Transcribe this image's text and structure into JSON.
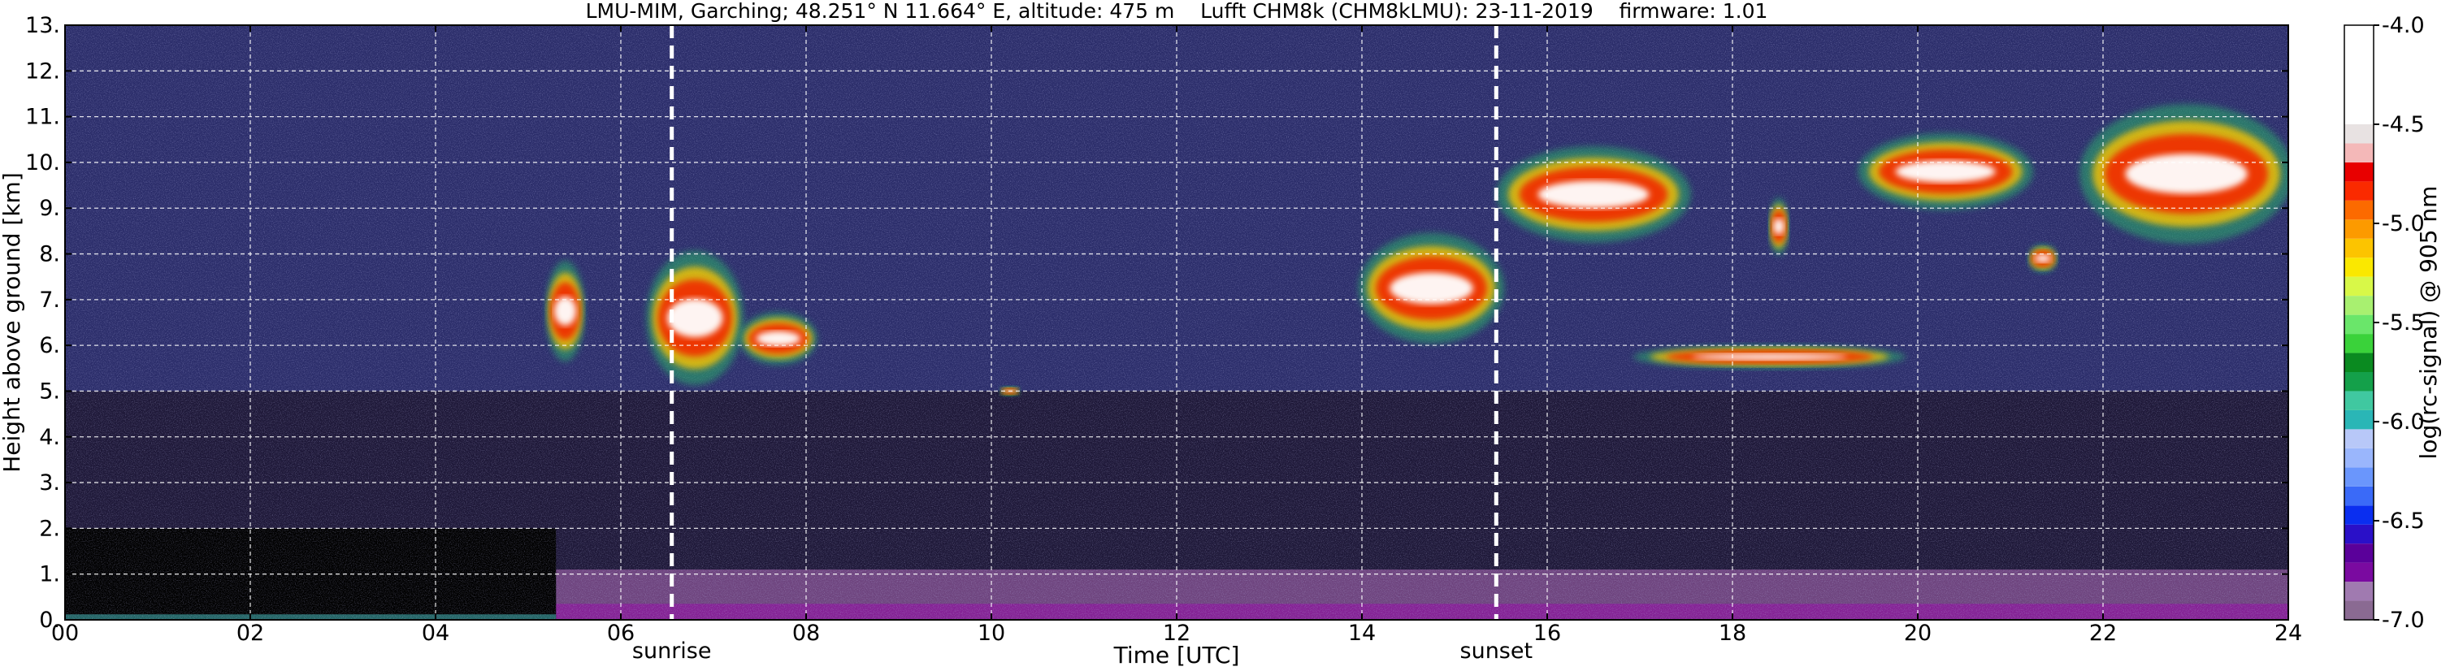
{
  "chart_data": {
    "type": "heatmap",
    "title": "LMU-MIM, Garching; 48.251° N 11.664° E, altitude: 475 m    Lufft CHM8k (CHM8kLMU): 23-11-2019    firmware: 1.01",
    "xlabel": "Time [UTC]",
    "ylabel": "Height above ground [km]",
    "xlim": [
      0,
      24
    ],
    "ylim": [
      0,
      13
    ],
    "x_ticks": [
      "00",
      "02",
      "04",
      "06",
      "08",
      "10",
      "12",
      "14",
      "16",
      "18",
      "20",
      "22",
      "24"
    ],
    "y_ticks": [
      "0.",
      "1.",
      "2.",
      "3.",
      "4.",
      "5.",
      "6.",
      "7.",
      "8.",
      "9.",
      "10.",
      "11.",
      "12.",
      "13."
    ],
    "grid": true,
    "colorbar": {
      "label": "log(rc-signal) @ 905 nm",
      "range": [
        -7.0,
        -4.0
      ],
      "ticks": [
        "-4.0",
        "-4.5",
        "-5.0",
        "-5.5",
        "-6.0",
        "-6.5",
        "-7.0"
      ],
      "colors": [
        "#8a6a92",
        "#a07ab0",
        "#7a0aa0",
        "#5a009a",
        "#2a10c8",
        "#0a2ef0",
        "#3a6af8",
        "#6a96fc",
        "#9ab6fc",
        "#b8c8f8",
        "#2ab6b6",
        "#40c8a0",
        "#14a04a",
        "#0a8a20",
        "#3ad23a",
        "#6ae66a",
        "#a8f070",
        "#d8f848",
        "#fae800",
        "#fcc400",
        "#fc9a00",
        "#fc6a00",
        "#fa2a00",
        "#e80000",
        "#f4b8b8",
        "#e8e2e2",
        "#ffffff"
      ]
    },
    "events": [
      {
        "label": "sunrise",
        "x": 6.55
      },
      {
        "label": "sunset",
        "x": 15.45
      }
    ],
    "cloud_layers": [
      {
        "x_start": 5.2,
        "x_end": 5.6,
        "y_bottom": 5.7,
        "y_top": 7.8
      },
      {
        "x_start": 6.3,
        "x_end": 7.3,
        "y_bottom": 5.2,
        "y_top": 8.0
      },
      {
        "x_start": 7.3,
        "x_end": 8.1,
        "y_bottom": 5.6,
        "y_top": 6.7
      },
      {
        "x_start": 14.0,
        "x_end": 15.5,
        "y_bottom": 6.1,
        "y_top": 8.4
      },
      {
        "x_start": 15.5,
        "x_end": 17.5,
        "y_bottom": 8.3,
        "y_top": 10.3
      },
      {
        "x_start": 18.4,
        "x_end": 18.6,
        "y_bottom": 8.0,
        "y_top": 9.2
      },
      {
        "x_start": 19.4,
        "x_end": 21.2,
        "y_bottom": 9.0,
        "y_top": 10.6
      },
      {
        "x_start": 21.2,
        "x_end": 21.5,
        "y_bottom": 7.6,
        "y_top": 8.2
      },
      {
        "x_start": 21.8,
        "x_end": 24.0,
        "y_bottom": 8.3,
        "y_top": 11.2
      },
      {
        "x_start": 17.0,
        "x_end": 19.8,
        "y_bottom": 5.5,
        "y_top": 6.0
      },
      {
        "x_start": 10.1,
        "x_end": 10.3,
        "y_bottom": 4.9,
        "y_top": 5.1
      }
    ],
    "background_regions": {
      "upper_noise": {
        "y_from": 5,
        "y_to": 13,
        "color": "#2b2d6a"
      },
      "lower_layer": {
        "y_from": 0,
        "y_to": 5,
        "color": "#1e1838"
      },
      "night_black": {
        "x_from": 0,
        "x_to": 5.3,
        "y_from": 0,
        "y_to": 2,
        "color": "#000000"
      },
      "boundary_layer": {
        "x_from": 5.3,
        "x_to": 24,
        "y_from": 0,
        "y_to": 1.1,
        "color": "#b06ab8"
      }
    }
  }
}
